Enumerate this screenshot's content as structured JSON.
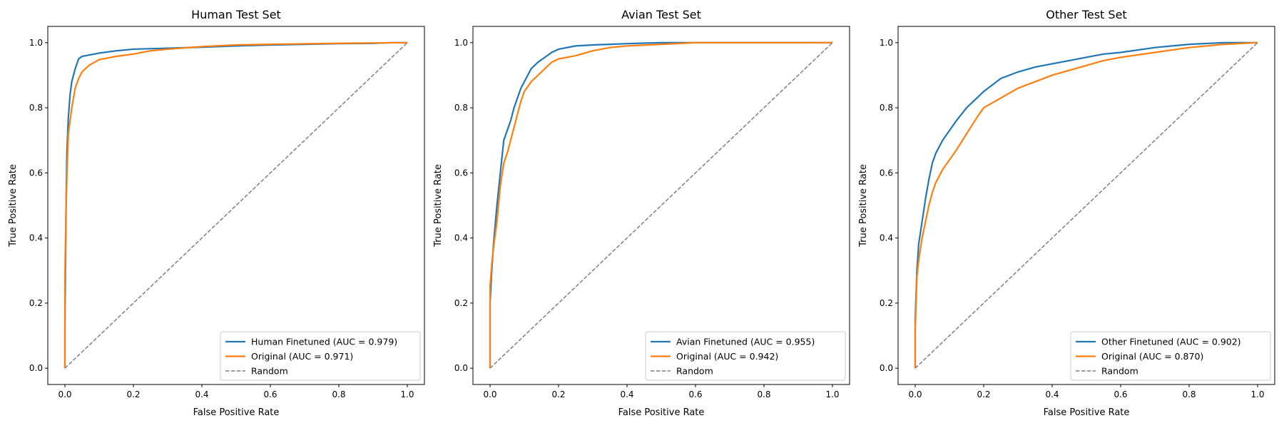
{
  "colors": {
    "finetuned": "#1f77b4",
    "original": "#ff7f0e",
    "random": "#7f7f7f"
  },
  "chart_data": [
    {
      "type": "line",
      "title": "Human Test Set",
      "xlabel": "False Positive Rate",
      "ylabel": "True Positive Rate",
      "xlim": [
        -0.05,
        1.05
      ],
      "ylim": [
        -0.05,
        1.05
      ],
      "xticks": [
        "0.0",
        "0.2",
        "0.4",
        "0.6",
        "0.8",
        "1.0"
      ],
      "yticks": [
        "0.0",
        "0.2",
        "0.4",
        "0.6",
        "0.8",
        "1.0"
      ],
      "legend_position": "lower-right",
      "series": [
        {
          "name": "Human Finetuned (AUC = 0.979)",
          "style": "solid",
          "x": [
            0,
            0,
            0.002,
            0.004,
            0.006,
            0.008,
            0.01,
            0.015,
            0.02,
            0.03,
            0.04,
            0.05,
            0.07,
            0.1,
            0.15,
            0.2,
            0.3,
            0.4,
            0.5,
            0.6,
            0.7,
            0.8,
            0.9,
            0.95,
            1.0
          ],
          "y": [
            0,
            0.12,
            0.36,
            0.55,
            0.67,
            0.72,
            0.77,
            0.84,
            0.88,
            0.92,
            0.95,
            0.958,
            0.962,
            0.968,
            0.975,
            0.98,
            0.983,
            0.986,
            0.99,
            0.993,
            0.995,
            0.997,
            0.998,
            1.0,
            1.0
          ]
        },
        {
          "name": "Original (AUC = 0.971)",
          "style": "solid",
          "x": [
            0,
            0,
            0.003,
            0.006,
            0.01,
            0.015,
            0.02,
            0.03,
            0.04,
            0.05,
            0.07,
            0.1,
            0.15,
            0.2,
            0.25,
            0.3,
            0.4,
            0.5,
            0.6,
            0.8,
            1.0
          ],
          "y": [
            0,
            0.27,
            0.48,
            0.6,
            0.72,
            0.76,
            0.8,
            0.86,
            0.89,
            0.91,
            0.93,
            0.948,
            0.958,
            0.965,
            0.975,
            0.98,
            0.988,
            0.993,
            0.995,
            0.998,
            1.0
          ]
        },
        {
          "name": "Random",
          "style": "dashed",
          "x": [
            0,
            1
          ],
          "y": [
            0,
            1
          ]
        }
      ]
    },
    {
      "type": "line",
      "title": "Avian Test Set",
      "xlabel": "False Positive Rate",
      "ylabel": "True Positive Rate",
      "xlim": [
        -0.05,
        1.05
      ],
      "ylim": [
        -0.05,
        1.05
      ],
      "xticks": [
        "0.0",
        "0.2",
        "0.4",
        "0.6",
        "0.8",
        "1.0"
      ],
      "yticks": [
        "0.0",
        "0.2",
        "0.4",
        "0.6",
        "0.8",
        "1.0"
      ],
      "legend_position": "lower-right",
      "series": [
        {
          "name": "Avian Finetuned (AUC = 0.955)",
          "style": "solid",
          "x": [
            0,
            0,
            0.005,
            0.01,
            0.02,
            0.03,
            0.04,
            0.05,
            0.06,
            0.07,
            0.08,
            0.09,
            0.1,
            0.12,
            0.14,
            0.16,
            0.18,
            0.2,
            0.25,
            0.3,
            0.35,
            0.4,
            0.5,
            0.6,
            1.0
          ],
          "y": [
            0,
            0.2,
            0.3,
            0.38,
            0.5,
            0.6,
            0.7,
            0.73,
            0.76,
            0.8,
            0.83,
            0.86,
            0.88,
            0.92,
            0.94,
            0.955,
            0.97,
            0.98,
            0.99,
            0.993,
            0.995,
            0.997,
            1.0,
            1.0,
            1.0
          ]
        },
        {
          "name": "Original (AUC = 0.942)",
          "style": "solid",
          "x": [
            0,
            0,
            0.005,
            0.01,
            0.02,
            0.03,
            0.04,
            0.05,
            0.06,
            0.07,
            0.08,
            0.09,
            0.1,
            0.12,
            0.15,
            0.18,
            0.2,
            0.25,
            0.3,
            0.35,
            0.4,
            0.5,
            0.6,
            1.0
          ],
          "y": [
            0,
            0.25,
            0.32,
            0.37,
            0.45,
            0.56,
            0.63,
            0.66,
            0.7,
            0.74,
            0.78,
            0.82,
            0.85,
            0.88,
            0.91,
            0.94,
            0.95,
            0.96,
            0.975,
            0.985,
            0.99,
            0.995,
            1.0,
            1.0
          ]
        },
        {
          "name": "Random",
          "style": "dashed",
          "x": [
            0,
            1
          ],
          "y": [
            0,
            1
          ]
        }
      ]
    },
    {
      "type": "line",
      "title": "Other Test Set",
      "xlabel": "False Positive Rate",
      "ylabel": "True Positive Rate",
      "xlim": [
        -0.05,
        1.05
      ],
      "ylim": [
        -0.05,
        1.05
      ],
      "xticks": [
        "0.0",
        "0.2",
        "0.4",
        "0.6",
        "0.8",
        "1.0"
      ],
      "yticks": [
        "0.0",
        "0.2",
        "0.4",
        "0.6",
        "0.8",
        "1.0"
      ],
      "legend_position": "lower-right",
      "series": [
        {
          "name": "Other Finetuned (AUC = 0.902)",
          "style": "solid",
          "x": [
            0,
            0,
            0.005,
            0.01,
            0.02,
            0.03,
            0.04,
            0.05,
            0.06,
            0.08,
            0.1,
            0.12,
            0.15,
            0.18,
            0.2,
            0.25,
            0.3,
            0.35,
            0.4,
            0.45,
            0.5,
            0.55,
            0.6,
            0.7,
            0.8,
            0.9,
            1.0
          ],
          "y": [
            0,
            0.15,
            0.3,
            0.38,
            0.45,
            0.52,
            0.58,
            0.63,
            0.66,
            0.7,
            0.73,
            0.76,
            0.8,
            0.83,
            0.85,
            0.89,
            0.91,
            0.925,
            0.935,
            0.945,
            0.955,
            0.965,
            0.97,
            0.985,
            0.995,
            1.0,
            1.0
          ]
        },
        {
          "name": "Original (AUC = 0.870)",
          "style": "solid",
          "x": [
            0,
            0,
            0.005,
            0.01,
            0.02,
            0.03,
            0.04,
            0.05,
            0.06,
            0.08,
            0.1,
            0.12,
            0.15,
            0.18,
            0.2,
            0.25,
            0.3,
            0.35,
            0.4,
            0.45,
            0.5,
            0.55,
            0.6,
            0.7,
            0.8,
            0.9,
            1.0
          ],
          "y": [
            0,
            0.12,
            0.28,
            0.33,
            0.4,
            0.45,
            0.5,
            0.54,
            0.57,
            0.61,
            0.64,
            0.67,
            0.72,
            0.77,
            0.8,
            0.83,
            0.86,
            0.88,
            0.9,
            0.915,
            0.93,
            0.945,
            0.955,
            0.97,
            0.985,
            0.995,
            1.0
          ]
        },
        {
          "name": "Random",
          "style": "dashed",
          "x": [
            0,
            1
          ],
          "y": [
            0,
            1
          ]
        }
      ]
    }
  ]
}
